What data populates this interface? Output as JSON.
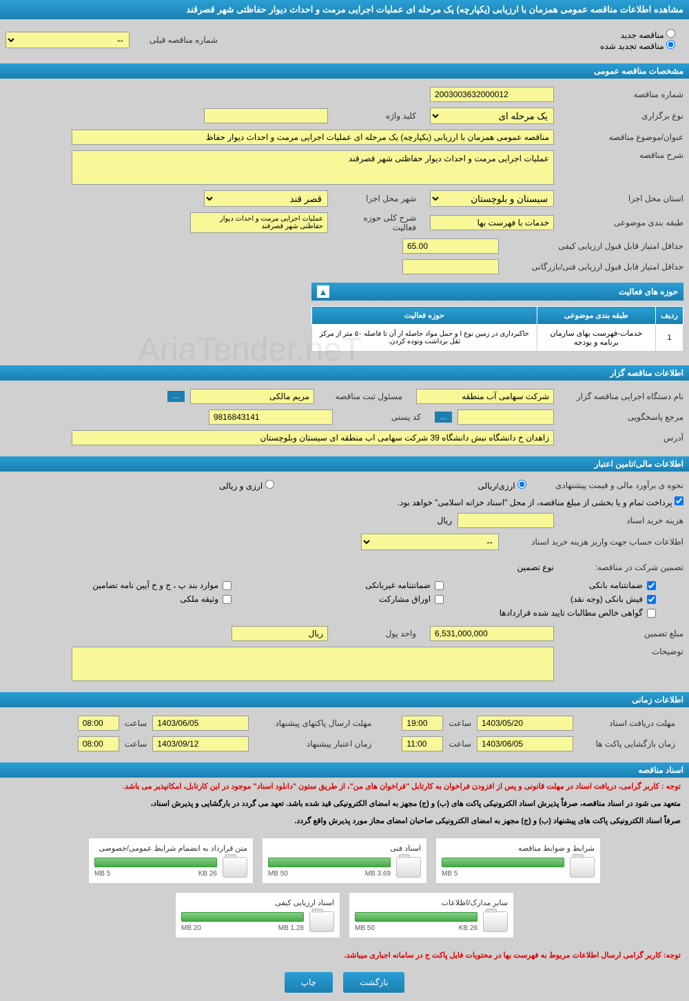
{
  "header": {
    "title": "مشاهده اطلاعات مناقصه عمومی همزمان با ارزیابی (یکپارچه) یک مرحله ای عملیات اجرایی مرمت و احداث دیوار حفاظتی شهر قصرقند"
  },
  "tender_type": {
    "new_label": "مناقصه جدید",
    "renewed_label": "مناقصه تجدید شده",
    "prev_number_label": "شماره مناقصه قبلی",
    "prev_number_value": "--"
  },
  "sections": {
    "general": "مشخصات مناقصه عمومی",
    "organizer": "اطلاعات مناقصه گزار",
    "financial": "اطلاعات مالی/تامین اعتبار",
    "timing": "اطلاعات زمانی",
    "documents": "اسناد مناقصه"
  },
  "general": {
    "tender_number_label": "شماره مناقصه",
    "tender_number": "2003003632000012",
    "holding_type_label": "نوع برگزاری",
    "holding_type": "یک مرحله ای",
    "keyword_label": "کلید واژه",
    "keyword": "",
    "subject_label": "عنوان/موضوع مناقصه",
    "subject": "مناقصه عمومی همزمان با ارزیابی (یکپارچه) یک مرحله ای عملیات اجرایی مرمت و احداث دیوار حفاظ",
    "description_label": "شرح مناقصه",
    "description": "عملیات اجرایی مرمت و احداث دیوار حفاظتی شهر قصرقند",
    "province_label": "استان محل اجرا",
    "province": "سیستان و بلوچستان",
    "city_label": "شهر محل اجرا",
    "city": "قصر قند",
    "category_label": "طبقه بندی موضوعی",
    "category": "خدمات با فهرست بها",
    "activity_scope_label": "شرح کلی حوزه فعالیت",
    "activity_scope": "عملیات اجرایی مرمت و احداث دیوار حفاظتی شهر قصرقند",
    "min_quality_score_label": "حداقل امتیاز قابل قبول ارزیابی کیفی",
    "min_quality_score": "65.00",
    "min_tech_score_label": "حداقل امتیاز قابل قبول ارزیابی فنی/بازرگانی",
    "min_tech_score": ""
  },
  "activity_table": {
    "title": "حوزه های فعالیت",
    "col_row": "ردیف",
    "col_category": "طبقه بندی موضوعی",
    "col_scope": "حوزه فعالیت",
    "rows": [
      {
        "num": "1",
        "category": "خدمات-فهرست بهای سازمان برنامه و بودجه",
        "scope": "خاکبرداری در زمین نوع I و حمل مواد حاصله از آن تا فاصله ۵۰ متر از مرکز ثقل برداشت وتوده کردن."
      }
    ]
  },
  "organizer": {
    "org_label": "نام دستگاه اجرایی مناقصه گزار",
    "org_name": "شرکت سهامی آب منطقه",
    "registrar_label": "مسئول ثبت مناقصه",
    "registrar": "مریم مالکی",
    "responder_label": "مرجع پاسخگویی",
    "responder": "",
    "postal_label": "کد پستی",
    "postal": "9816843141",
    "address_label": "آدرس",
    "address": "زاهدان خ دانشگاه نبش دانشگاه 39 شرکت سهامی اب منطقه ای سیستان وبلوچستان",
    "more_btn": "..."
  },
  "financial": {
    "estimate_label": "نحوه ی برآورد مالی و قیمت پیشنهادی",
    "currency_rial": "ارزی/ریالی",
    "currency_foreign": "ارزی و ریالی",
    "treasury_note": "پرداخت تمام و یا بخشی از مبلغ مناقصه، از محل \"اسناد خزانه اسلامی\" خواهد بود.",
    "doc_fee_label": "هزینه خرید اسناد",
    "doc_fee_unit": "ریال",
    "doc_fee": "",
    "account_label": "اطلاعات حساب جهت واریز هزینه خرید اسناد",
    "account": "--",
    "guarantee_header": "تضمین شرکت در مناقصه:",
    "guarantee_type_label": "نوع تضمین",
    "guarantees": {
      "bank": "ضمانتنامه بانکی",
      "nonbank": "ضمانتنامه غیربانکی",
      "bonds": "موارد بند پ ، ج و خ آیین نامه تضامین",
      "cash": "فیش بانکی (وجه نقد)",
      "participation": "اوراق مشارکت",
      "property": "وثیقه ملکی",
      "certificate": "گواهی خالص مطالبات تایید شده قراردادها"
    },
    "guarantee_amount_label": "مبلغ تضمین",
    "guarantee_amount": "6,531,000,000",
    "currency_unit_label": "واحد پول",
    "currency_unit": "ریال",
    "notes_label": "توضیحات",
    "notes": ""
  },
  "timing": {
    "doc_deadline_label": "مهلت دریافت اسناد",
    "doc_deadline_date": "1403/05/20",
    "doc_deadline_time": "19:00",
    "time_label": "ساعت",
    "proposal_deadline_label": "مهلت ارسال پاکتهای پیشنهاد",
    "proposal_deadline_date": "1403/06/05",
    "proposal_deadline_time": "08:00",
    "opening_label": "زمان بازگشایی پاکت ها",
    "opening_date": "1403/06/05",
    "opening_time": "11:00",
    "validity_label": "زمان اعتبار پیشنهاد",
    "validity_date": "1403/09/12",
    "validity_time": "08:00"
  },
  "notices": {
    "notice1": "توجه : کاربر گرامی، دریافت اسناد در مهلت قانونی و پس از افزودن فراخوان به کارتابل \"فراخوان های من\"، از طریق ستون \"دانلود اسناد\" موجود در این کارتابل، امکانپذیر می باشد.",
    "notice2a": "متعهد می شود در اسناد مناقصه، صرفاً پذیرش اسناد الکترونیکی پاکت های (ب) و (ج) مجهز به امضای الکترونیکی قید شده باشد. تعهد می گردد در بارگشایی و پذیرش اسناد،",
    "notice2b": "صرفاً اسناد الکترونیکی پاکت های پیشنهاد (ب) و (ج) مجهز به امضای الکترونیکی صاحبان امضای مجاز مورد پذیرش واقع گردد.",
    "notice3": "توجه: کاربر گرامی ارسال اطلاعات مربوط به فهرست بها در محتویات فایل پاکت ج در سامانه اجباری میباشد."
  },
  "files": [
    {
      "title": "شرایط و ضوابط مناقصه",
      "used": "",
      "total": "5 MB"
    },
    {
      "title": "اسناد فنی",
      "used": "3.69 MB",
      "total": "50 MB"
    },
    {
      "title": "متن قرارداد به انضمام شرایط عمومی/خصوصی",
      "used": "26 KB",
      "total": "5 MB"
    },
    {
      "title": "سایر مدارک/اطلاعات",
      "used": "26 KB",
      "total": "50 MB"
    },
    {
      "title": "اسناد ارزیابی کیفی",
      "used": "1.28 MB",
      "total": "20 MB"
    }
  ],
  "footer": {
    "back": "بازگشت",
    "print": "چاپ"
  },
  "watermark": "AriaTender.neT"
}
